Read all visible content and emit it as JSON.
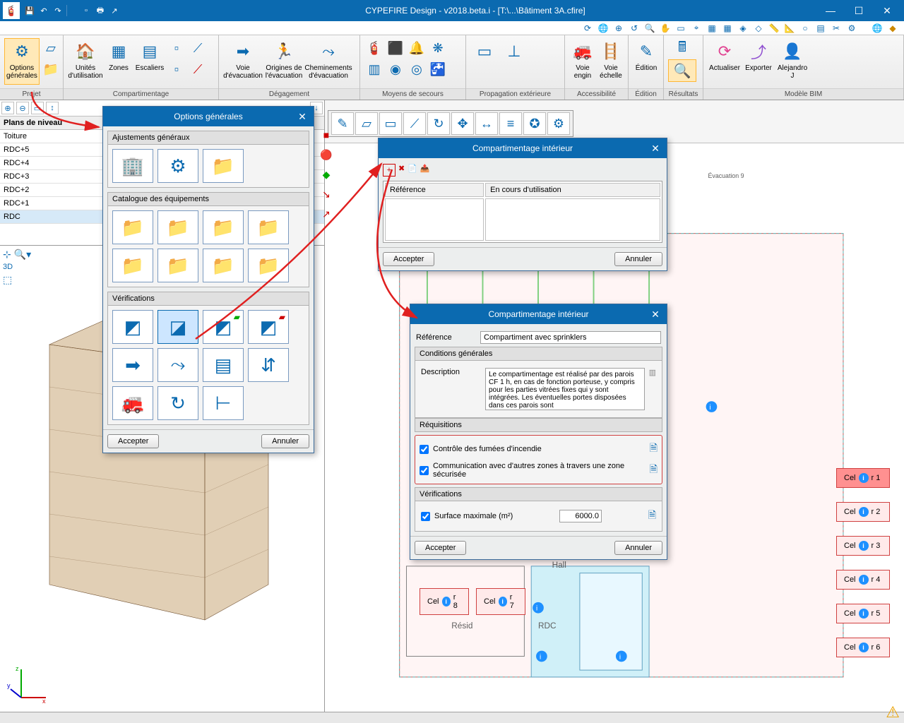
{
  "app": {
    "title": "CYPEFIRE Design - v2018.beta.i - [T:\\...\\Bâtiment 3A.cfire]"
  },
  "ribbon": {
    "groups": [
      {
        "label": "Projet",
        "items": [
          {
            "name": "options-generales",
            "txt": "Options générales",
            "selected": true
          }
        ]
      },
      {
        "label": "Compartimentage",
        "items": [
          {
            "name": "unites",
            "txt": "Unités d'utilisation"
          },
          {
            "name": "zones",
            "txt": "Zones"
          },
          {
            "name": "escaliers",
            "txt": "Escaliers"
          }
        ]
      },
      {
        "label": "Dégagement",
        "items": [
          {
            "name": "voie-evac",
            "txt": "Voie d'évacuation"
          },
          {
            "name": "origines",
            "txt": "Origines de l'évacuation"
          },
          {
            "name": "cheminements",
            "txt": "Cheminements d'évacuation"
          }
        ]
      },
      {
        "label": "Moyens de secours",
        "items": []
      },
      {
        "label": "Propagation extérieure",
        "items": []
      },
      {
        "label": "Accessibilité",
        "items": [
          {
            "name": "voie-engin",
            "txt": "Voie engin"
          },
          {
            "name": "voie-echelle",
            "txt": "Voie échelle"
          }
        ]
      },
      {
        "label": "Édition",
        "items": [
          {
            "name": "edition",
            "txt": "Édition"
          }
        ]
      },
      {
        "label": "Résultats",
        "items": [
          {
            "name": "resultats-calc",
            "txt": ""
          },
          {
            "name": "resultats-search",
            "txt": "",
            "selected": true
          }
        ]
      },
      {
        "label": "Modèle BIM",
        "items": [
          {
            "name": "actualiser",
            "txt": "Actualiser"
          },
          {
            "name": "exporter",
            "txt": "Exporter"
          },
          {
            "name": "alejandro",
            "txt": "Alejandro J"
          }
        ]
      }
    ],
    "label_resultats": "Résultats"
  },
  "plans": {
    "header": "Plans de niveau",
    "levels": [
      "Toiture",
      "RDC+5",
      "RDC+4",
      "RDC+3",
      "RDC+2",
      "RDC+1",
      "RDC"
    ],
    "selected": "RDC"
  },
  "dlg_options": {
    "title": "Options générales",
    "sections": {
      "s1": "Ajustements généraux",
      "s2": "Catalogue des équipements",
      "s3": "Vérifications"
    },
    "accept": "Accepter",
    "cancel": "Annuler"
  },
  "dlg_comp_list": {
    "title": "Compartimentage intérieur",
    "col1": "Référence",
    "col2": "En cours d'utilisation",
    "accept": "Accepter",
    "cancel": "Annuler"
  },
  "dlg_comp_detail": {
    "title": "Compartimentage intérieur",
    "ref_label": "Référence",
    "ref_value": "Compartiment avec sprinklers",
    "cond_header": "Conditions générales",
    "desc_label": "Description",
    "desc_text": "Le compartimentage est réalisé par des parois CF 1 h, en cas de fonction porteuse, y compris pour les parties vitrées fixes qui y sont intégrées. Les éventuelles portes disposées dans ces parois sont",
    "req_header": "Réquisitions",
    "req1": "Contrôle des fumées d'incendie",
    "req2": "Communication avec d'autres zones à travers une zone sécurisée",
    "verif_header": "Vérifications",
    "verif1": "Surface maximale (m²)",
    "verif1_val": "6000.0",
    "accept": "Accepter",
    "cancel": "Annuler"
  },
  "floorplan": {
    "cells": [
      "Cellier 1",
      "Cellier 2",
      "Cellier 3",
      "Cellier 4",
      "Cellier 5",
      "Cellier 6",
      "Cellier 7",
      "Cellier 8"
    ],
    "hall": "Hall",
    "resid": "Résid",
    "rdc": "RDC",
    "evac": "Évacuation 9"
  },
  "colors": {
    "primary": "#0b6ab0",
    "accent": "#ffb734",
    "danger": "#d04040",
    "lightblue": "#cde6ff"
  }
}
